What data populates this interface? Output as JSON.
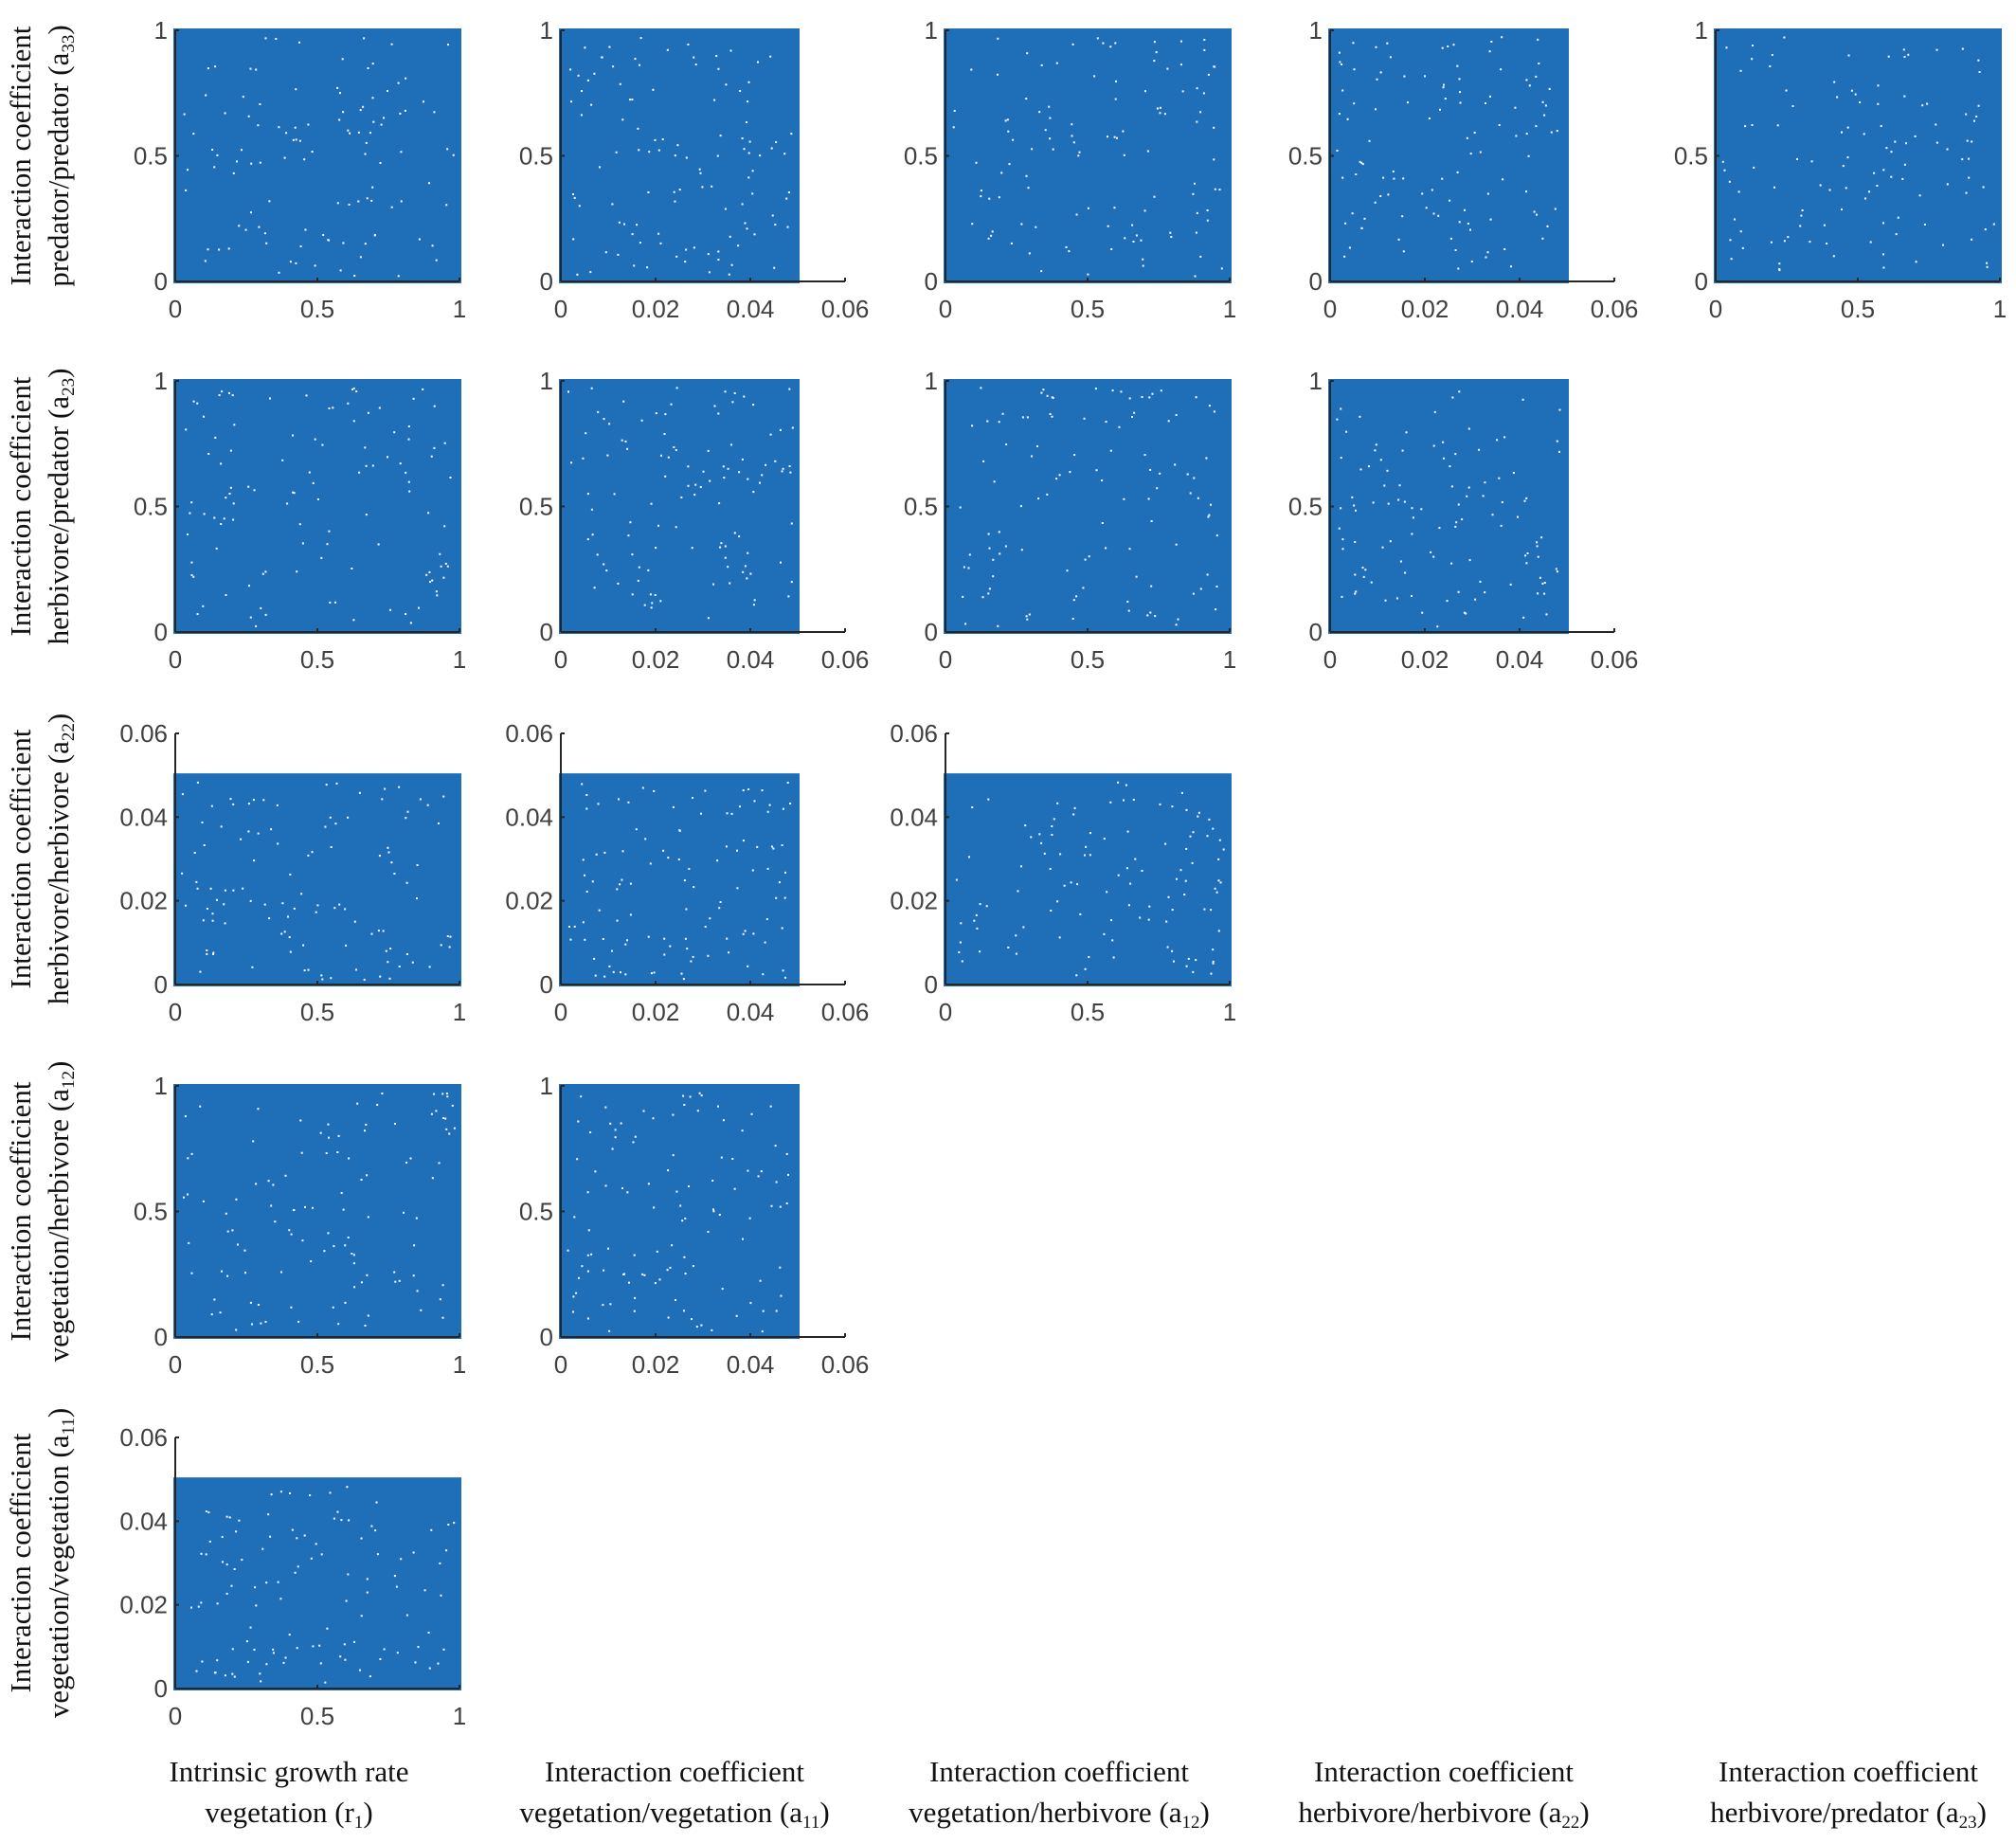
{
  "figure": {
    "column_labels": [
      {
        "line1": "Intrinsic growth rate",
        "line2": "vegetation (r",
        "sub": "1",
        "tail": ")"
      },
      {
        "line1": "Interaction coefficient",
        "line2": "vegetation/vegetation (a",
        "sub": "11",
        "tail": ")"
      },
      {
        "line1": "Interaction coefficient",
        "line2": "vegetation/herbivore (a",
        "sub": "12",
        "tail": ")"
      },
      {
        "line1": "Interaction coefficient",
        "line2": "herbivore/herbivore (a",
        "sub": "22",
        "tail": ")"
      },
      {
        "line1": "Interaction coefficient",
        "line2": "herbivore/predator (a",
        "sub": "23",
        "tail": ")"
      }
    ],
    "row_labels": [
      {
        "line1": "Interaction coefficient",
        "line2": "predator/predator (a",
        "sub": "33",
        "tail": ")"
      },
      {
        "line1": "Interaction coefficient",
        "line2": "herbivore/predator (a",
        "sub": "23",
        "tail": ")"
      },
      {
        "line1": "Interaction coefficient",
        "line2": "herbivore/herbivore (a",
        "sub": "22",
        "tail": ")"
      },
      {
        "line1": "Interaction coefficient",
        "line2": "vegetation/herbivore (a",
        "sub": "12",
        "tail": ")"
      },
      {
        "line1": "Interaction coefficient",
        "line2": "vegetation/vegetation (a",
        "sub": "11",
        "tail": ")"
      }
    ],
    "marker_color": "#1f6fb8"
  },
  "chart_data": [
    {
      "type": "scatter",
      "row": 0,
      "col": 0,
      "xlim": [
        0,
        1
      ],
      "ylim": [
        0,
        1
      ],
      "xticks": [
        "0",
        "0.5",
        "1"
      ],
      "yticks": [
        "0",
        "0.5",
        "1"
      ],
      "sample_x_range": [
        0,
        1
      ],
      "sample_y_range": [
        0,
        1
      ]
    },
    {
      "type": "scatter",
      "row": 0,
      "col": 1,
      "xlim": [
        0,
        0.06
      ],
      "ylim": [
        0,
        1
      ],
      "xticks": [
        "0",
        "0.02",
        "0.04",
        "0.06"
      ],
      "yticks": [
        "0",
        "0.5",
        "1"
      ],
      "sample_x_range": [
        0,
        0.05
      ],
      "sample_y_range": [
        0,
        1
      ]
    },
    {
      "type": "scatter",
      "row": 0,
      "col": 2,
      "xlim": [
        0,
        1
      ],
      "ylim": [
        0,
        1
      ],
      "xticks": [
        "0",
        "0.5",
        "1"
      ],
      "yticks": [
        "0",
        "0.5",
        "1"
      ],
      "sample_x_range": [
        0,
        1
      ],
      "sample_y_range": [
        0,
        1
      ]
    },
    {
      "type": "scatter",
      "row": 0,
      "col": 3,
      "xlim": [
        0,
        0.06
      ],
      "ylim": [
        0,
        1
      ],
      "xticks": [
        "0",
        "0.02",
        "0.04",
        "0.06"
      ],
      "yticks": [
        "0",
        "0.5",
        "1"
      ],
      "sample_x_range": [
        0,
        0.05
      ],
      "sample_y_range": [
        0,
        1
      ]
    },
    {
      "type": "scatter",
      "row": 0,
      "col": 4,
      "xlim": [
        0,
        1
      ],
      "ylim": [
        0,
        1
      ],
      "xticks": [
        "0",
        "0.5",
        "1"
      ],
      "yticks": [
        "0",
        "0.5",
        "1"
      ],
      "sample_x_range": [
        0,
        1
      ],
      "sample_y_range": [
        0,
        1
      ]
    },
    {
      "type": "scatter",
      "row": 1,
      "col": 0,
      "xlim": [
        0,
        1
      ],
      "ylim": [
        0,
        1
      ],
      "xticks": [
        "0",
        "0.5",
        "1"
      ],
      "yticks": [
        "0",
        "0.5",
        "1"
      ],
      "sample_x_range": [
        0,
        1
      ],
      "sample_y_range": [
        0,
        1
      ]
    },
    {
      "type": "scatter",
      "row": 1,
      "col": 1,
      "xlim": [
        0,
        0.06
      ],
      "ylim": [
        0,
        1
      ],
      "xticks": [
        "0",
        "0.02",
        "0.04",
        "0.06"
      ],
      "yticks": [
        "0",
        "0.5",
        "1"
      ],
      "sample_x_range": [
        0,
        0.05
      ],
      "sample_y_range": [
        0,
        1
      ]
    },
    {
      "type": "scatter",
      "row": 1,
      "col": 2,
      "xlim": [
        0,
        1
      ],
      "ylim": [
        0,
        1
      ],
      "xticks": [
        "0",
        "0.5",
        "1"
      ],
      "yticks": [
        "0",
        "0.5",
        "1"
      ],
      "sample_x_range": [
        0,
        1
      ],
      "sample_y_range": [
        0,
        1
      ]
    },
    {
      "type": "scatter",
      "row": 1,
      "col": 3,
      "xlim": [
        0,
        0.06
      ],
      "ylim": [
        0,
        1
      ],
      "xticks": [
        "0",
        "0.02",
        "0.04",
        "0.06"
      ],
      "yticks": [
        "0",
        "0.5",
        "1"
      ],
      "sample_x_range": [
        0,
        0.05
      ],
      "sample_y_range": [
        0,
        1
      ]
    },
    {
      "type": "scatter",
      "row": 2,
      "col": 0,
      "xlim": [
        0,
        1
      ],
      "ylim": [
        0,
        0.06
      ],
      "xticks": [
        "0",
        "0.5",
        "1"
      ],
      "yticks": [
        "0",
        "0.02",
        "0.04",
        "0.06"
      ],
      "sample_x_range": [
        0,
        1
      ],
      "sample_y_range": [
        0,
        0.05
      ]
    },
    {
      "type": "scatter",
      "row": 2,
      "col": 1,
      "xlim": [
        0,
        0.06
      ],
      "ylim": [
        0,
        0.06
      ],
      "xticks": [
        "0",
        "0.02",
        "0.04",
        "0.06"
      ],
      "yticks": [
        "0",
        "0.02",
        "0.04",
        "0.06"
      ],
      "sample_x_range": [
        0,
        0.05
      ],
      "sample_y_range": [
        0,
        0.05
      ]
    },
    {
      "type": "scatter",
      "row": 2,
      "col": 2,
      "xlim": [
        0,
        1
      ],
      "ylim": [
        0,
        0.06
      ],
      "xticks": [
        "0",
        "0.5",
        "1"
      ],
      "yticks": [
        "0",
        "0.02",
        "0.04",
        "0.06"
      ],
      "sample_x_range": [
        0,
        1
      ],
      "sample_y_range": [
        0,
        0.05
      ]
    },
    {
      "type": "scatter",
      "row": 3,
      "col": 0,
      "xlim": [
        0,
        1
      ],
      "ylim": [
        0,
        1
      ],
      "xticks": [
        "0",
        "0.5",
        "1"
      ],
      "yticks": [
        "0",
        "0.5",
        "1"
      ],
      "sample_x_range": [
        0,
        1
      ],
      "sample_y_range": [
        0,
        1
      ]
    },
    {
      "type": "scatter",
      "row": 3,
      "col": 1,
      "xlim": [
        0,
        0.06
      ],
      "ylim": [
        0,
        1
      ],
      "xticks": [
        "0",
        "0.02",
        "0.04",
        "0.06"
      ],
      "yticks": [
        "0",
        "0.5",
        "1"
      ],
      "sample_x_range": [
        0,
        0.05
      ],
      "sample_y_range": [
        0,
        1
      ]
    },
    {
      "type": "scatter",
      "row": 4,
      "col": 0,
      "xlim": [
        0,
        1
      ],
      "ylim": [
        0,
        0.06
      ],
      "xticks": [
        "0",
        "0.5",
        "1"
      ],
      "yticks": [
        "0",
        "0.02",
        "0.04",
        "0.06"
      ],
      "sample_x_range": [
        0,
        1
      ],
      "sample_y_range": [
        0,
        0.05
      ]
    }
  ]
}
